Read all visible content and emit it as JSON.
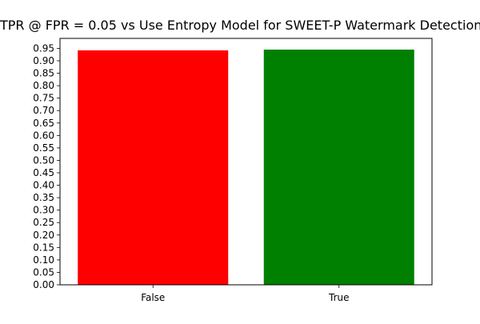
{
  "chart_data": {
    "type": "bar",
    "title": "TPR @ FPR = 0.05 vs Use Entropy Model for SWEET-P Watermark Detection",
    "xlabel": "",
    "ylabel": "",
    "categories": [
      "False",
      "True"
    ],
    "values": [
      0.942,
      0.945
    ],
    "colors": [
      "#ff0000",
      "#008000"
    ],
    "ylim": [
      0,
      0.99
    ],
    "yticks": [
      "0.00",
      "0.05",
      "0.10",
      "0.15",
      "0.20",
      "0.25",
      "0.30",
      "0.35",
      "0.40",
      "0.45",
      "0.50",
      "0.55",
      "0.60",
      "0.65",
      "0.70",
      "0.75",
      "0.80",
      "0.85",
      "0.90",
      "0.95"
    ],
    "grid": false,
    "legend": "none"
  }
}
